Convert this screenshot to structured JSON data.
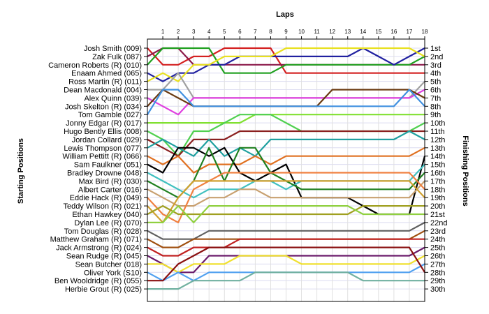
{
  "chart_data": {
    "type": "line",
    "title": "",
    "xlabel": "Laps",
    "ylabel_left": "Starting Positions",
    "ylabel_right": "Finishing Positions",
    "x": [
      0,
      1,
      2,
      3,
      4,
      5,
      6,
      7,
      8,
      9,
      10,
      11,
      12,
      13,
      14,
      15,
      16,
      17,
      18
    ],
    "x_tick_labels": [
      "1",
      "2",
      "3",
      "4",
      "5",
      "6",
      "7",
      "8",
      "9",
      "10",
      "11",
      "12",
      "13",
      "14",
      "15",
      "16",
      "17",
      "18"
    ],
    "ylim": [
      1,
      30
    ],
    "grid": true,
    "legend": "none",
    "finishing_labels": [
      "1st",
      "2nd",
      "3rd",
      "4th",
      "5th",
      "6th",
      "7th",
      "8th",
      "9th",
      "10th",
      "11th",
      "12th",
      "13th",
      "14th",
      "15th",
      "16th",
      "17th",
      "18th",
      "19th",
      "20th",
      "21st",
      "22nd",
      "23rd",
      "24th",
      "25th",
      "26th",
      "27th",
      "28th",
      "29th",
      "30th"
    ],
    "series": [
      {
        "name": "Josh Smith (009)",
        "color": "#d42020",
        "values": [
          1,
          3,
          3,
          2,
          2,
          1,
          1,
          1,
          1,
          4,
          4,
          4,
          4,
          4,
          4,
          4,
          4,
          4,
          4
        ]
      },
      {
        "name": "Zak Fulk (087)",
        "color": "#8b1a4a",
        "values": [
          2,
          1,
          1,
          3,
          3,
          3,
          3,
          3,
          3,
          3,
          3,
          3,
          3,
          3,
          3,
          3,
          3,
          3,
          3
        ]
      },
      {
        "name": "Cameron Roberts  (R) (010)",
        "color": "#20a020",
        "values": [
          3,
          1,
          1,
          1,
          1,
          4,
          4,
          4,
          4,
          3,
          3,
          3,
          3,
          3,
          3,
          3,
          3,
          3,
          2
        ]
      },
      {
        "name": "Enaam Ahmed (065)",
        "color": "#2020a0",
        "values": [
          4,
          5,
          4,
          4,
          3,
          3,
          2,
          2,
          2,
          2,
          2,
          2,
          2,
          2,
          1,
          2,
          3,
          2,
          1
        ]
      },
      {
        "name": "Ross Martin  (R) (011)",
        "color": "#e8e020",
        "values": [
          5,
          4,
          5,
          3,
          3,
          2,
          2,
          2,
          2,
          1,
          1,
          1,
          1,
          1,
          1,
          1,
          1,
          1,
          2
        ]
      },
      {
        "name": "Dean Macdonald (004)",
        "color": "#a0a0a0",
        "values": [
          6,
          6,
          4,
          7,
          7,
          7,
          7,
          7,
          7,
          7,
          7,
          7,
          7,
          7,
          7,
          7,
          7,
          7,
          5
        ]
      },
      {
        "name": "Alex Quinn (039)",
        "color": "#e040e0",
        "values": [
          7,
          8,
          9,
          7,
          7,
          7,
          7,
          7,
          7,
          7,
          7,
          7,
          7,
          7,
          7,
          7,
          7,
          7,
          6
        ]
      },
      {
        "name": "Josh Skelton  (R) (034)",
        "color": "#6a3a10",
        "values": [
          8,
          6,
          7,
          8,
          8,
          8,
          8,
          8,
          8,
          8,
          8,
          8,
          6,
          6,
          6,
          6,
          6,
          6,
          7
        ]
      },
      {
        "name": "Tom Gamble (027)",
        "color": "#4090e0",
        "values": [
          9,
          6,
          6,
          8,
          8,
          8,
          8,
          8,
          8,
          8,
          8,
          8,
          8,
          8,
          8,
          8,
          8,
          6,
          8
        ]
      },
      {
        "name": "Jonny Edgar  (R) (017)",
        "color": "#80e030",
        "values": [
          10,
          10,
          10,
          10,
          10,
          10,
          10,
          9,
          9,
          9,
          9,
          9,
          9,
          9,
          9,
          9,
          9,
          9,
          9
        ]
      },
      {
        "name": "Hugo Bently Ellis (008)",
        "color": "#50d050",
        "values": [
          11,
          12,
          14,
          11,
          11,
          10,
          9,
          9,
          9,
          10,
          11,
          11,
          11,
          11,
          11,
          11,
          11,
          11,
          10
        ]
      },
      {
        "name": "Jordan Collard (029)",
        "color": "#8b2020",
        "values": [
          12,
          13,
          14,
          12,
          12,
          12,
          11,
          11,
          11,
          11,
          11,
          11,
          11,
          11,
          11,
          11,
          11,
          11,
          11
        ]
      },
      {
        "name": "Lewis Thompson (077)",
        "color": "#20a0a0",
        "values": [
          13,
          12,
          13,
          14,
          12,
          14,
          13,
          14,
          12,
          12,
          12,
          12,
          12,
          12,
          12,
          12,
          12,
          11,
          12
        ]
      },
      {
        "name": "William Pettitt  (R) (066)",
        "color": "#e07020",
        "values": [
          14,
          15,
          14,
          16,
          15,
          15,
          15,
          14,
          15,
          14,
          14,
          14,
          14,
          14,
          14,
          14,
          14,
          14,
          13
        ]
      },
      {
        "name": "Sam Faulkner (051)",
        "color": "#000000",
        "values": [
          15,
          16,
          13,
          13,
          14,
          13,
          16,
          17,
          16,
          15,
          19,
          19,
          19,
          19,
          20,
          21,
          21,
          21,
          14
        ]
      },
      {
        "name": "Bradley Drowne (048)",
        "color": "#40c0c0",
        "values": [
          16,
          17,
          18,
          19,
          18,
          18,
          18,
          17,
          17,
          18,
          17,
          17,
          17,
          17,
          17,
          17,
          17,
          17,
          15
        ]
      },
      {
        "name": "Max Bird  (R) (030)",
        "color": "#208020",
        "values": [
          17,
          18,
          19,
          17,
          13,
          17,
          13,
          13,
          16,
          17,
          18,
          18,
          18,
          18,
          18,
          18,
          18,
          18,
          16
        ]
      },
      {
        "name": "Albert Carter (016)",
        "color": "#c8a070",
        "values": [
          18,
          19,
          20,
          20,
          19,
          19,
          18,
          18,
          19,
          19,
          19,
          19,
          19,
          19,
          19,
          19,
          19,
          19,
          17
        ]
      },
      {
        "name": "Eddie Hack  (R) (049)",
        "color": "#f08040",
        "values": [
          19,
          21,
          22,
          18,
          17,
          16,
          16,
          16,
          16,
          16,
          16,
          16,
          16,
          16,
          16,
          16,
          16,
          16,
          18
        ]
      },
      {
        "name": "Teddy Wilson  (R) (021)",
        "color": "#d0a030",
        "values": [
          20,
          22,
          19,
          17,
          17,
          17,
          17,
          17,
          17,
          17,
          17,
          17,
          17,
          17,
          17,
          17,
          17,
          17,
          19
        ]
      },
      {
        "name": "Ethan Hawkey (040)",
        "color": "#a0a020",
        "values": [
          21,
          20,
          21,
          21,
          21,
          21,
          21,
          21,
          21,
          21,
          21,
          21,
          21,
          21,
          20,
          20,
          20,
          20,
          20
        ]
      },
      {
        "name": "Dylan Lee  (R) (070)",
        "color": "#90d040",
        "values": [
          22,
          22,
          20,
          22,
          20,
          20,
          20,
          20,
          20,
          20,
          20,
          20,
          20,
          20,
          21,
          21,
          21,
          21,
          21
        ]
      },
      {
        "name": "Tom Douglas  (R) (028)",
        "color": "#606060",
        "values": [
          23,
          24,
          24,
          24,
          23,
          23,
          23,
          23,
          23,
          23,
          23,
          23,
          23,
          23,
          23,
          23,
          23,
          23,
          22
        ]
      },
      {
        "name": "Matthew Graham  (R) (071)",
        "color": "#a05010",
        "values": [
          24,
          25,
          25,
          24,
          24,
          24,
          24,
          24,
          24,
          24,
          24,
          24,
          24,
          24,
          24,
          24,
          24,
          24,
          23
        ]
      },
      {
        "name": "Jack Armstrong  (R) (024)",
        "color": "#c02020",
        "values": [
          25,
          26,
          26,
          25,
          25,
          25,
          24,
          24,
          24,
          24,
          24,
          24,
          24,
          24,
          24,
          24,
          24,
          24,
          24
        ]
      },
      {
        "name": "Sean Rudge  (R) (045)",
        "color": "#6a1a6a",
        "values": [
          26,
          27,
          28,
          28,
          26,
          26,
          26,
          26,
          26,
          26,
          26,
          26,
          26,
          26,
          26,
          26,
          26,
          26,
          25
        ]
      },
      {
        "name": "Sean Butcher (018)",
        "color": "#f0e030",
        "values": [
          27,
          27,
          28,
          27,
          27,
          27,
          26,
          26,
          26,
          26,
          27,
          27,
          27,
          27,
          27,
          27,
          27,
          27,
          26
        ]
      },
      {
        "name": "Oliver York (S10)",
        "color": "#50a0f0",
        "values": [
          28,
          29,
          28,
          29,
          28,
          28,
          28,
          28,
          28,
          28,
          28,
          28,
          28,
          28,
          28,
          28,
          28,
          28,
          27
        ]
      },
      {
        "name": "Ben Wooldridge  (R) (055)",
        "color": "#8a1010",
        "values": [
          29,
          29,
          27,
          26,
          25,
          25,
          25,
          25,
          25,
          25,
          25,
          25,
          25,
          25,
          25,
          25,
          25,
          25,
          28
        ]
      },
      {
        "name": "Herbie Grout  (R) (025)",
        "color": "#70b0a0",
        "values": [
          30,
          30,
          30,
          29,
          29,
          29,
          29,
          28,
          28,
          28,
          28,
          28,
          28,
          28,
          29,
          29,
          29,
          29,
          29
        ]
      }
    ]
  }
}
